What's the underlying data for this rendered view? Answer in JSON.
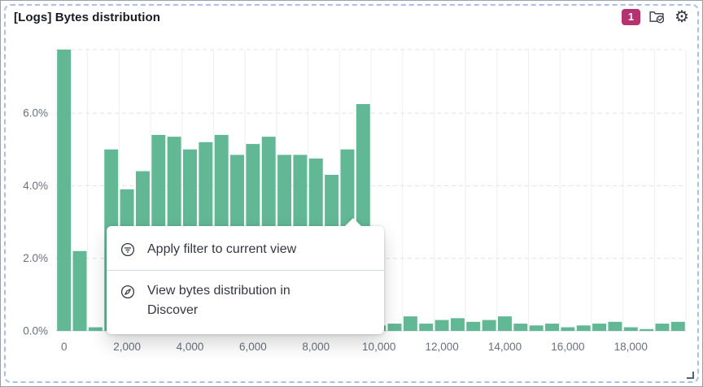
{
  "panel": {
    "title": "[Logs] Bytes distribution",
    "controls": {
      "badge_count": "1"
    }
  },
  "icons": {
    "gear_glyph": "⚙"
  },
  "context_menu": {
    "items": [
      {
        "icon": "filter-in-circle-icon",
        "label": "Apply filter to current view"
      },
      {
        "icon": "compass-icon",
        "label": "View bytes distribution in Discover"
      }
    ]
  },
  "colors": {
    "bar": "#62b795",
    "badge_background": "#b5316f",
    "panel_border": "#a9c2e4",
    "grid": "#dfe3ea",
    "v_grid": "#edeff4",
    "axis_text": "#69707d"
  },
  "chart_data": {
    "type": "bar",
    "title": "[Logs] Bytes distribution",
    "xlabel": "",
    "ylabel": "",
    "xlim": [
      0,
      20000
    ],
    "ylim": [
      0,
      7.75
    ],
    "bin_width": 500,
    "x": [
      0,
      500,
      1000,
      1500,
      2000,
      2500,
      3000,
      3500,
      4000,
      4500,
      5000,
      5500,
      6000,
      6500,
      7000,
      7500,
      8000,
      8500,
      9000,
      9500,
      10000,
      10500,
      11000,
      11500,
      12000,
      12500,
      13000,
      13500,
      14000,
      14500,
      15000,
      15500,
      16000,
      16500,
      17000,
      17500,
      18000,
      18500,
      19000,
      19500
    ],
    "values": [
      7.75,
      2.2,
      0.1,
      5.0,
      3.9,
      4.4,
      5.4,
      5.35,
      5.0,
      5.2,
      5.4,
      4.85,
      5.15,
      5.35,
      4.85,
      4.85,
      4.75,
      4.3,
      5.0,
      6.25,
      0.15,
      0.2,
      0.4,
      0.2,
      0.3,
      0.35,
      0.25,
      0.3,
      0.4,
      0.2,
      0.15,
      0.2,
      0.1,
      0.15,
      0.2,
      0.25,
      0.1,
      0.05,
      0.2,
      0.25
    ],
    "x_ticks": [
      0,
      2000,
      4000,
      6000,
      8000,
      10000,
      12000,
      14000,
      16000,
      18000
    ],
    "x_tick_labels": [
      "0",
      "2,000",
      "4,000",
      "6,000",
      "8,000",
      "10,000",
      "12,000",
      "14,000",
      "16,000",
      "18,000"
    ],
    "y_ticks": [
      0,
      2,
      4,
      6
    ],
    "y_tick_labels": [
      "0.0%",
      "2.0%",
      "4.0%",
      "6.0%"
    ],
    "grid": true,
    "legend": false,
    "bar_color": "#62b795"
  }
}
